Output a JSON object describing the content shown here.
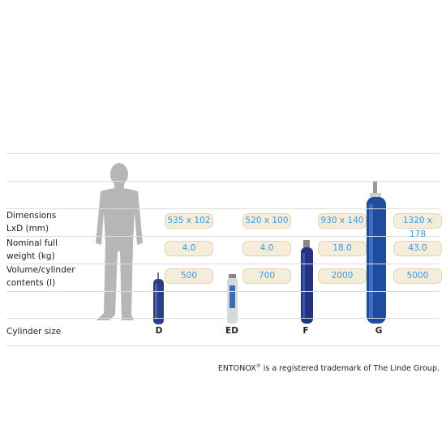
{
  "table": {
    "rows": [
      {
        "label": [
          "Dimensions",
          "LxD (mm)"
        ],
        "cells": [
          "535 x 102",
          "520 x 100",
          "930 x 140",
          "1320 x 178"
        ]
      },
      {
        "label": [
          "Nominal full",
          "weight (kg)"
        ],
        "cells": [
          "4.0",
          "4.0",
          "18.0",
          "43.0"
        ]
      },
      {
        "label": [
          "Volume/cylinder",
          "contents (l)"
        ],
        "cells": [
          "500",
          "700",
          "2000",
          "5000"
        ]
      }
    ],
    "size_label": "Cylinder size",
    "columns": [
      "D",
      "ED",
      "F",
      "G"
    ]
  },
  "footer": {
    "brand": "ENTONOX",
    "mark": "®",
    "text": "is a registered trademark of The Linde Group."
  }
}
